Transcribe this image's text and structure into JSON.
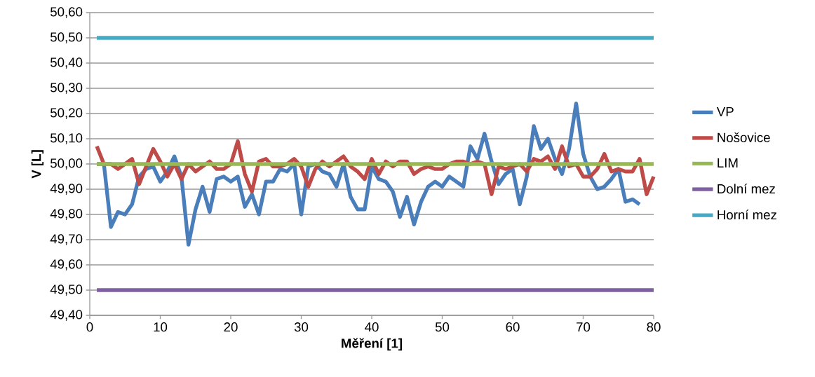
{
  "chart_data": {
    "type": "line",
    "xlabel": "Měření [1]",
    "ylabel": "V [L]",
    "xlim": [
      0,
      80
    ],
    "xticks": [
      0,
      10,
      20,
      30,
      40,
      50,
      60,
      70,
      80
    ],
    "ylim": [
      49.4,
      50.6
    ],
    "yticks": [
      {
        "value": 49.4,
        "label": "49,40"
      },
      {
        "value": 49.5,
        "label": "49,50"
      },
      {
        "value": 49.6,
        "label": "49,60"
      },
      {
        "value": 49.7,
        "label": "49,70"
      },
      {
        "value": 49.8,
        "label": "49,80"
      },
      {
        "value": 49.9,
        "label": "49,90"
      },
      {
        "value": 50.0,
        "label": "50,00"
      },
      {
        "value": 50.1,
        "label": "50,10"
      },
      {
        "value": 50.2,
        "label": "50,20"
      },
      {
        "value": 50.3,
        "label": "50,30"
      },
      {
        "value": 50.4,
        "label": "50,40"
      },
      {
        "value": 50.5,
        "label": "50,50"
      },
      {
        "value": 50.6,
        "label": "50,60"
      }
    ],
    "grid": "y",
    "legend": "right",
    "marker": "none",
    "line_style": "solid",
    "series": [
      {
        "name": "VP",
        "color": "#4a7ebb",
        "x": [
          1,
          2,
          3,
          4,
          5,
          6,
          7,
          8,
          9,
          10,
          11,
          12,
          13,
          14,
          15,
          16,
          17,
          18,
          19,
          20,
          21,
          22,
          23,
          24,
          25,
          26,
          27,
          28,
          29,
          30,
          31,
          32,
          33,
          34,
          35,
          36,
          37,
          38,
          39,
          40,
          41,
          42,
          43,
          44,
          45,
          46,
          47,
          48,
          49,
          50,
          51,
          52,
          53,
          54,
          55,
          56,
          57,
          58,
          59,
          60,
          61,
          62,
          63,
          64,
          65,
          66,
          67,
          68,
          69,
          70,
          71,
          72,
          73,
          74,
          75,
          76,
          77,
          78
        ],
        "values": [
          50.0,
          50.0,
          49.75,
          49.81,
          49.8,
          49.84,
          49.95,
          49.98,
          49.99,
          49.93,
          49.97,
          50.03,
          49.95,
          49.68,
          49.82,
          49.91,
          49.81,
          49.94,
          49.95,
          49.93,
          49.95,
          49.83,
          49.88,
          49.8,
          49.93,
          49.93,
          49.98,
          49.97,
          50.0,
          49.8,
          49.99,
          50.0,
          49.97,
          49.96,
          49.91,
          50.0,
          49.87,
          49.82,
          49.82,
          49.99,
          49.94,
          49.93,
          49.89,
          49.79,
          49.87,
          49.76,
          49.85,
          49.91,
          49.93,
          49.91,
          49.95,
          49.93,
          49.91,
          50.07,
          50.02,
          50.12,
          50.01,
          49.92,
          49.96,
          49.98,
          49.84,
          49.95,
          50.15,
          50.06,
          50.1,
          50.02,
          49.96,
          50.06,
          50.24,
          50.04,
          49.95,
          49.9,
          49.91,
          49.94,
          49.98,
          49.85,
          49.86,
          49.84
        ]
      },
      {
        "name": "Nošovice",
        "color": "#be4b48",
        "x": [
          1,
          2,
          3,
          4,
          5,
          6,
          7,
          8,
          9,
          10,
          11,
          12,
          13,
          14,
          15,
          16,
          17,
          18,
          19,
          20,
          21,
          22,
          23,
          24,
          25,
          26,
          27,
          28,
          29,
          30,
          31,
          32,
          33,
          34,
          35,
          36,
          37,
          38,
          39,
          40,
          41,
          42,
          43,
          44,
          45,
          46,
          47,
          48,
          49,
          50,
          51,
          52,
          53,
          54,
          55,
          56,
          57,
          58,
          59,
          60,
          61,
          62,
          63,
          64,
          65,
          66,
          67,
          68,
          69,
          70,
          71,
          72,
          73,
          74,
          75,
          76,
          77,
          78,
          79,
          80
        ],
        "values": [
          50.07,
          50.0,
          50.0,
          49.98,
          50.0,
          50.02,
          49.92,
          49.99,
          50.06,
          50.01,
          49.95,
          50.0,
          49.94,
          50.0,
          49.97,
          49.99,
          50.01,
          49.98,
          49.98,
          50.0,
          50.09,
          49.96,
          49.89,
          50.01,
          50.02,
          49.99,
          49.99,
          50.0,
          50.02,
          49.99,
          49.91,
          49.98,
          50.01,
          49.99,
          50.01,
          50.03,
          49.99,
          49.97,
          49.94,
          50.02,
          49.96,
          50.01,
          49.99,
          50.01,
          50.01,
          49.96,
          49.98,
          49.99,
          49.98,
          49.98,
          50.0,
          50.01,
          50.01,
          50.0,
          50.01,
          50.0,
          49.88,
          49.99,
          49.98,
          49.99,
          50.0,
          49.97,
          50.02,
          50.01,
          50.03,
          49.98,
          50.07,
          49.99,
          50.0,
          49.95,
          49.95,
          49.98,
          50.04,
          49.97,
          49.98,
          49.97,
          49.97,
          50.02,
          49.88,
          49.95
        ]
      },
      {
        "name": "LIM",
        "color": "#98b954",
        "x": [
          1,
          80
        ],
        "values": [
          50.0,
          50.0
        ]
      },
      {
        "name": "Dolní mez",
        "color": "#7d60a0",
        "x": [
          1,
          80
        ],
        "values": [
          49.5,
          49.5
        ]
      },
      {
        "name": "Horní mez",
        "color": "#46aac5",
        "x": [
          1,
          80
        ],
        "values": [
          50.5,
          50.5
        ]
      }
    ]
  }
}
